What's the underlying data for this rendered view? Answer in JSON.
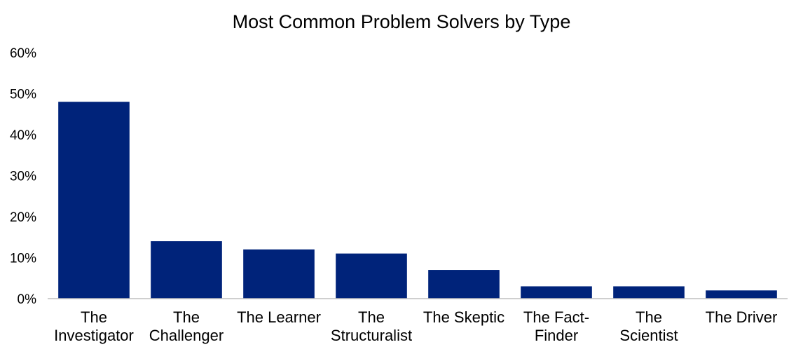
{
  "chart_data": {
    "type": "bar",
    "title": "Most Common Problem Solvers by Type",
    "xlabel": "",
    "ylabel": "",
    "categories": [
      "The Investigator",
      "The Challenger",
      "The Learner",
      "The Structuralist",
      "The Skeptic",
      "The Fact-Finder",
      "The Scientist",
      "The Driver"
    ],
    "category_label_lines": [
      [
        "The",
        "Investigator"
      ],
      [
        "The",
        "Challenger"
      ],
      [
        "The Learner"
      ],
      [
        "The",
        "Structuralist"
      ],
      [
        "The Skeptic"
      ],
      [
        "The Fact-",
        "Finder"
      ],
      [
        "The",
        "Scientist"
      ],
      [
        "The Driver"
      ]
    ],
    "values": [
      48,
      14,
      12,
      11,
      7,
      3,
      3,
      2
    ],
    "ylim": [
      0,
      60
    ],
    "yticks": [
      0,
      10,
      20,
      30,
      40,
      50,
      60
    ],
    "ytick_labels": [
      "0%",
      "10%",
      "20%",
      "30%",
      "40%",
      "50%",
      "60%"
    ],
    "grid": false,
    "legend": "none",
    "bar_color": "#00237A",
    "axis_color": "#BFBFBF"
  }
}
